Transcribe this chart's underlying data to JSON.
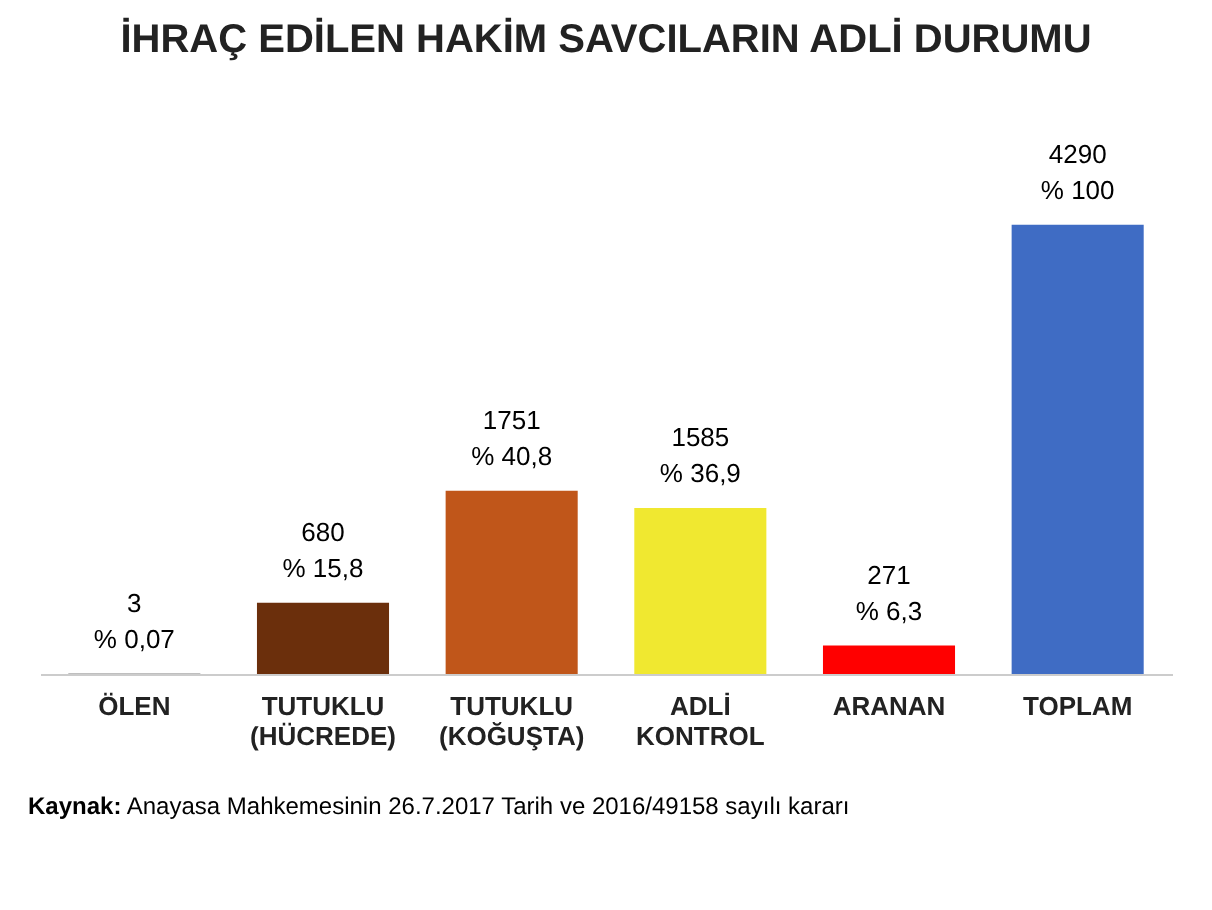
{
  "chart_data": {
    "type": "bar",
    "title": "İHRAÇ EDİLEN HAKİM SAVCILARIN ADLİ DURUMU",
    "categories": [
      "ÖLEN",
      "TUTUKLU (HÜCREDE)",
      "TUTUKLU (KOĞUŞTA)",
      "ADLİ KONTROL",
      "ARANAN",
      "TOPLAM"
    ],
    "values": [
      3,
      680,
      1751,
      1585,
      271,
      4290
    ],
    "colors": [
      "#000000",
      "#6b2f0c",
      "#c0561a",
      "#f0e830",
      "#ff0000",
      "#3f6cc4"
    ],
    "value_labels": [
      "3\n% 0,07",
      "680\n% 15,8",
      "1751\n% 40,8",
      "1585\n% 36,9",
      "271\n% 6,3",
      "4290\n% 100"
    ],
    "annotations": [
      "Kaynak: Anayasa Mahkemesinin 26.7.2017 Tarih  ve 2016/49158 sayılı kararı"
    ]
  }
}
